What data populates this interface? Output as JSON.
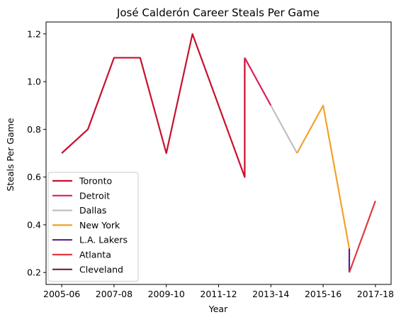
{
  "chart_data": {
    "type": "line",
    "title": "José Calderón  Career Steals Per Game",
    "xlabel": "Year",
    "ylabel": "Steals Per Game",
    "x_tick_labels": [
      "2005-06",
      "2007-08",
      "2009-10",
      "2011-12",
      "2013-14",
      "2015-16",
      "2017-18"
    ],
    "y_tick_labels": [
      "0.2",
      "0.4",
      "0.6",
      "0.8",
      "1.0",
      "1.2"
    ],
    "x_ticks": [
      0,
      2,
      4,
      6,
      8,
      10,
      12
    ],
    "y_ticks": [
      0.2,
      0.4,
      0.6,
      0.8,
      1.0,
      1.2
    ],
    "xlim": [
      -0.6,
      12.6
    ],
    "ylim": [
      0.15,
      1.25
    ],
    "legend_position": "lower-left",
    "grid": false,
    "series": [
      {
        "name": "Toronto",
        "color": "#c8102e",
        "points": [
          [
            0,
            0.7
          ],
          [
            1,
            0.8
          ],
          [
            2,
            1.1
          ],
          [
            3,
            1.1
          ],
          [
            4,
            0.7
          ],
          [
            5,
            1.2
          ],
          [
            6,
            0.9
          ],
          [
            7,
            0.6
          ],
          [
            7,
            1.1
          ]
        ]
      },
      {
        "name": "Detroit",
        "color": "#e01e5a",
        "points": [
          [
            7,
            1.1
          ],
          [
            8,
            0.9
          ]
        ]
      },
      {
        "name": "Dallas",
        "color": "#bfbfbf",
        "points": [
          [
            8,
            0.9
          ],
          [
            9,
            0.7
          ]
        ]
      },
      {
        "name": "New York",
        "color": "#f2a22a",
        "points": [
          [
            9,
            0.7
          ],
          [
            10,
            0.9
          ],
          [
            11,
            0.3
          ]
        ]
      },
      {
        "name": "L.A. Lakers",
        "color": "#552583",
        "points": [
          [
            11,
            0.3
          ],
          [
            11,
            0.2
          ]
        ]
      },
      {
        "name": "Atlanta",
        "color": "#e03a3e",
        "points": [
          [
            11,
            0.2
          ],
          [
            12,
            0.5
          ]
        ]
      },
      {
        "name": "Cleveland",
        "color": "#6f263d",
        "points": []
      }
    ]
  }
}
